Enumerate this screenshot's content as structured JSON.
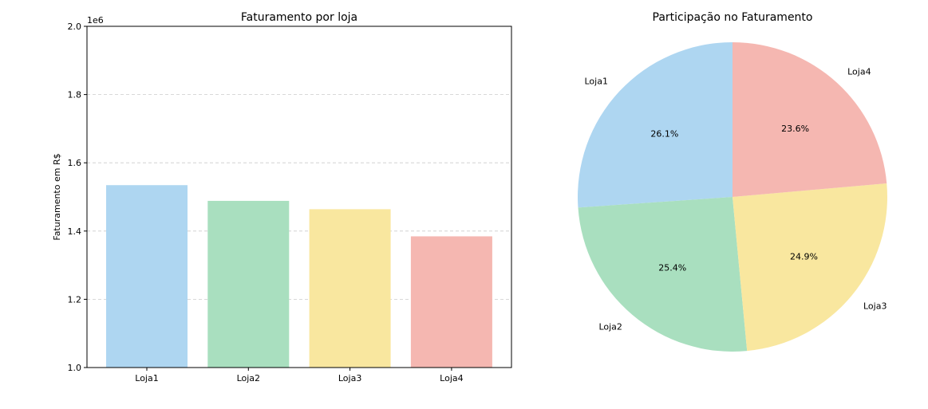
{
  "chart_data": [
    {
      "type": "bar",
      "title": "Faturamento por loja",
      "xlabel": "",
      "ylabel": "Faturamento em R$",
      "offset_label": "1e6",
      "categories": [
        "Loja1",
        "Loja2",
        "Loja3",
        "Loja4"
      ],
      "values": [
        1534509,
        1488459,
        1464025,
        1384497
      ],
      "ylim": [
        1.0,
        2.0
      ],
      "yticks": [
        "1.0",
        "1.2",
        "1.4",
        "1.6",
        "1.8",
        "2.0"
      ],
      "colors": [
        "#aed6f1",
        "#a9dfbf",
        "#f9e79f",
        "#f5b7b1"
      ],
      "grid": "horizontal-dashed"
    },
    {
      "type": "pie",
      "title": "Participação no Faturamento",
      "labels": [
        "Loja1",
        "Loja2",
        "Loja3",
        "Loja4"
      ],
      "values": [
        26.1,
        25.4,
        24.9,
        23.6
      ],
      "pct_labels": [
        "26.1%",
        "25.4%",
        "24.9%",
        "23.6%"
      ],
      "colors": [
        "#aed6f1",
        "#a9dfbf",
        "#f9e79f",
        "#f5b7b1"
      ],
      "start_angle": 90,
      "direction": "counterclockwise"
    }
  ]
}
